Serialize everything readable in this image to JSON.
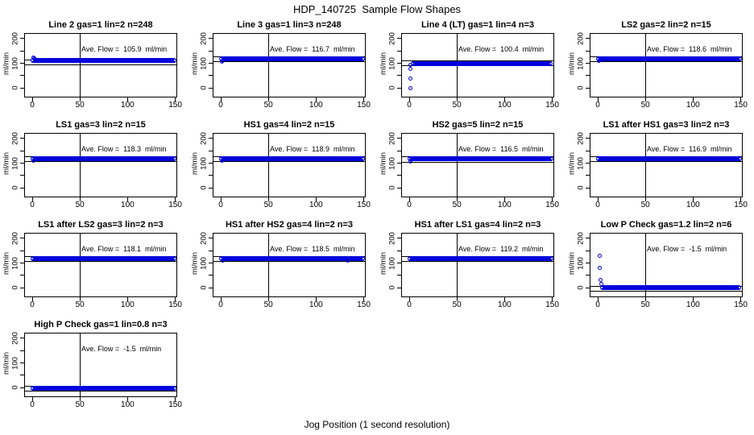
{
  "figure": {
    "title": "HDP_140725  Sample Flow Shapes",
    "xlabel": "Jog Position (1 second resolution)"
  },
  "chart_data": {
    "type": "scatter",
    "title": "HDP_140725  Sample Flow Shapes",
    "xlabel": "Jog Position (1 second resolution)",
    "layout": {
      "rows": 4,
      "cols": 4,
      "grid": "on-none",
      "legend": "none"
    },
    "point_color": "#0202dd",
    "axes": {
      "ylabel": "ml/min",
      "x_ticks": [
        0,
        50,
        100,
        150
      ],
      "y_ticks": [
        0,
        50,
        100,
        150,
        200
      ],
      "y_tick_labels": [
        0,
        100,
        200
      ],
      "xlim": [
        -8,
        152
      ],
      "ylim": [
        -38,
        222
      ],
      "vline_x": 50,
      "ref_line_offset": 10
    },
    "plots": [
      {
        "title": "Line 2 gas=1 lin=2 n=248",
        "ave_flow": 105.9,
        "ave_flow_label": "Ave. Flow =  105.9  ml/min",
        "band": {
          "x_start": 0,
          "x_end": 151,
          "y_center": 111
        },
        "points": [
          [
            1,
            123
          ],
          [
            2,
            120
          ],
          [
            3,
            118
          ]
        ]
      },
      {
        "title": "Line 3 gas=1 lin=3 n=248",
        "ave_flow": 116.7,
        "ave_flow_label": "Ave. Flow =  116.7  ml/min",
        "band": {
          "x_start": 0,
          "x_end": 151,
          "y_center": 118
        },
        "points": [
          [
            1,
            108
          ],
          [
            2,
            111
          ]
        ]
      },
      {
        "title": "Line 4 (LT) gas=1 lin=4 n=3",
        "ave_flow": 100.4,
        "ave_flow_label": "Ave. Flow =  100.4  ml/min",
        "band": {
          "x_start": 4,
          "x_end": 151,
          "y_center": 97
        },
        "points": [
          [
            1.5,
            95
          ],
          [
            1.5,
            79
          ],
          [
            1.5,
            40
          ],
          [
            1.5,
            -2
          ]
        ]
      },
      {
        "title": "LS2 gas=2 lin=2 n=15",
        "ave_flow": 118.6,
        "ave_flow_label": "Ave. Flow =  118.6  ml/min",
        "band": {
          "x_start": 0,
          "x_end": 151,
          "y_center": 119
        },
        "points": [
          [
            1.5,
            110
          ],
          [
            2.5,
            113
          ]
        ]
      },
      {
        "title": "LS1 gas=3 lin=2 n=15",
        "ave_flow": 118.3,
        "ave_flow_label": "Ave. Flow =  118.3  ml/min",
        "band": {
          "x_start": 0,
          "x_end": 151,
          "y_center": 118
        },
        "points": [
          [
            1.5,
            110
          ]
        ]
      },
      {
        "title": "HS1 gas=4 lin=2 n=15",
        "ave_flow": 118.9,
        "ave_flow_label": "Ave. Flow =  118.9  ml/min",
        "band": {
          "x_start": 0,
          "x_end": 151,
          "y_center": 119
        },
        "points": [
          [
            1.5,
            111
          ]
        ]
      },
      {
        "title": "HS2 gas=5 lin=2 n=15",
        "ave_flow": 116.5,
        "ave_flow_label": "Ave. Flow =  116.5  ml/min",
        "band": {
          "x_start": 0,
          "x_end": 151,
          "y_center": 117
        },
        "points": [
          [
            1.5,
            108
          ],
          [
            2.5,
            112
          ]
        ]
      },
      {
        "title": "LS1 after HS1 gas=3 lin=2 n=3",
        "ave_flow": 116.9,
        "ave_flow_label": "Ave. Flow =  116.9  ml/min",
        "band": {
          "x_start": 0,
          "x_end": 151,
          "y_center": 117
        },
        "points": []
      },
      {
        "title": "LS1 after LS2 gas=3 lin=2 n=3",
        "ave_flow": 118.1,
        "ave_flow_label": "Ave. Flow =  118.1  ml/min",
        "band": {
          "x_start": 0,
          "x_end": 151,
          "y_center": 118
        },
        "points": []
      },
      {
        "title": "HS1 after HS2 gas=4 lin=2 n=3",
        "ave_flow": 118.5,
        "ave_flow_label": "Ave. Flow =  118.5  ml/min",
        "band": {
          "x_start": 0,
          "x_end": 151,
          "y_center": 118
        },
        "points": [
          [
            2.5,
            109
          ],
          [
            133,
            109
          ]
        ]
      },
      {
        "title": "HS1 after LS1 gas=4 lin=2 n=3",
        "ave_flow": 119.2,
        "ave_flow_label": "Ave. Flow =  119.2  ml/min",
        "band": {
          "x_start": 0,
          "x_end": 151,
          "y_center": 119
        },
        "points": []
      },
      {
        "title": "Low P Check gas=1.2 lin=2 n=6",
        "ave_flow": -1.5,
        "ave_flow_label": "Ave. Flow =  -1.5  ml/min",
        "band": {
          "x_start": 5,
          "x_end": 151,
          "y_center": 0
        },
        "points": [
          [
            2,
            128
          ],
          [
            2,
            80
          ],
          [
            3,
            33
          ],
          [
            3.5,
            16
          ]
        ]
      },
      {
        "title": "High P Check gas=1 lin=0.8 n=3",
        "ave_flow": -1.5,
        "ave_flow_label": "Ave. Flow =  -1.5  ml/min",
        "band": {
          "x_start": 0,
          "x_end": 151,
          "y_center": -1
        },
        "points": []
      }
    ]
  }
}
